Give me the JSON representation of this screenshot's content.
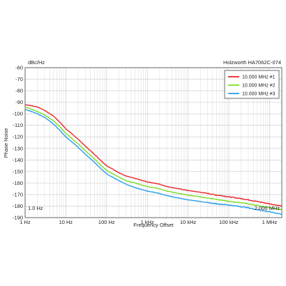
{
  "chart_data": {
    "type": "line",
    "title": "Holzworth HA7062C-074",
    "y_unit_label": "dBc/Hz",
    "xlabel": "Frequency Offset",
    "ylabel": "Phase Noise",
    "x_scale": "log",
    "xlim": [
      1,
      2000000
    ],
    "ylim": [
      -190,
      -60
    ],
    "x_ticks": [
      1,
      10,
      100,
      1000,
      10000,
      100000,
      1000000
    ],
    "x_tick_labels": [
      "1 Hz",
      "10 Hz",
      "100 Hz",
      "1 kHz",
      "10 kHz",
      "100 kHz",
      "1 MHz"
    ],
    "y_ticks": [
      -60,
      -70,
      -80,
      -90,
      -100,
      -110,
      -120,
      -130,
      -140,
      -150,
      -160,
      -170,
      -180,
      -190
    ],
    "y_tick_labels": [
      "-60",
      "-70",
      "-80",
      "-90",
      "-100",
      "-110",
      "-120",
      "-130",
      "-140",
      "-150",
      "-160",
      "-170",
      "-180",
      "-190"
    ],
    "grid": true,
    "legend_position": "top-right",
    "range_start_label": "1.0 Hz",
    "range_end_label": "2.000 MHz",
    "series": [
      {
        "name": "10.000 MHz #1",
        "color": "#e8282d",
        "x": [
          1,
          2,
          3,
          5,
          7,
          10,
          20,
          30,
          50,
          70,
          100,
          200,
          300,
          500,
          700,
          1000,
          2000,
          3000,
          5000,
          7000,
          10000,
          20000,
          30000,
          50000,
          70000,
          100000,
          200000,
          300000,
          500000,
          700000,
          1000000,
          2000000
        ],
        "y": [
          -92,
          -94,
          -97,
          -102,
          -107,
          -113,
          -122,
          -128,
          -135,
          -140,
          -145,
          -151,
          -154,
          -156,
          -157.5,
          -159,
          -161,
          -163,
          -164.5,
          -165.5,
          -166.5,
          -168,
          -169,
          -170.5,
          -171,
          -172,
          -173.5,
          -174.5,
          -176,
          -177,
          -178,
          -180
        ]
      },
      {
        "name": "10.000 MHz #2",
        "color": "#7ddc2a",
        "x": [
          1,
          2,
          3,
          5,
          7,
          10,
          20,
          30,
          50,
          70,
          100,
          200,
          300,
          500,
          700,
          1000,
          2000,
          3000,
          5000,
          7000,
          10000,
          20000,
          30000,
          50000,
          70000,
          100000,
          200000,
          300000,
          500000,
          700000,
          1000000,
          2000000
        ],
        "y": [
          -94,
          -98,
          -101,
          -106,
          -111,
          -117,
          -126,
          -132,
          -139,
          -144,
          -149,
          -155,
          -158,
          -160,
          -161.5,
          -163,
          -165,
          -167,
          -168.5,
          -169.5,
          -170.5,
          -172,
          -173,
          -174,
          -175,
          -176,
          -177,
          -178,
          -179.5,
          -180.5,
          -181.5,
          -183
        ]
      },
      {
        "name": "10.000 MHz #3",
        "color": "#2a9fe8",
        "x": [
          1,
          2,
          3,
          5,
          7,
          10,
          20,
          30,
          50,
          70,
          100,
          200,
          300,
          500,
          700,
          1000,
          2000,
          3000,
          5000,
          7000,
          10000,
          20000,
          30000,
          50000,
          70000,
          100000,
          200000,
          300000,
          500000,
          700000,
          1000000,
          2000000
        ],
        "y": [
          -96,
          -100,
          -103,
          -109,
          -114,
          -120,
          -129,
          -135,
          -142,
          -147,
          -152,
          -158,
          -161,
          -164,
          -165.5,
          -167,
          -169,
          -171,
          -172.5,
          -173.5,
          -174.5,
          -176,
          -177,
          -178,
          -178.5,
          -179,
          -180.5,
          -181.5,
          -183,
          -184,
          -185,
          -187
        ]
      }
    ]
  }
}
